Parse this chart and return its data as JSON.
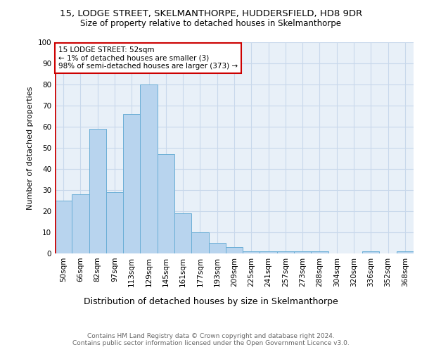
{
  "title_line1": "15, LODGE STREET, SKELMANTHORPE, HUDDERSFIELD, HD8 9DR",
  "title_line2": "Size of property relative to detached houses in Skelmanthorpe",
  "xlabel": "Distribution of detached houses by size in Skelmanthorpe",
  "ylabel": "Number of detached properties",
  "categories": [
    "50sqm",
    "66sqm",
    "82sqm",
    "97sqm",
    "113sqm",
    "129sqm",
    "145sqm",
    "161sqm",
    "177sqm",
    "193sqm",
    "209sqm",
    "225sqm",
    "241sqm",
    "257sqm",
    "273sqm",
    "288sqm",
    "304sqm",
    "320sqm",
    "336sqm",
    "352sqm",
    "368sqm"
  ],
  "values": [
    25,
    28,
    59,
    29,
    66,
    80,
    47,
    19,
    10,
    5,
    3,
    1,
    1,
    1,
    1,
    1,
    0,
    0,
    1,
    0,
    1
  ],
  "bar_color": "#b8d4ee",
  "bar_edge_color": "#6aaed6",
  "annotation_box_text": "15 LODGE STREET: 52sqm\n← 1% of detached houses are smaller (3)\n98% of semi-detached houses are larger (373) →",
  "annotation_box_color": "#ffffff",
  "annotation_box_edge_color": "#cc0000",
  "ylim": [
    0,
    100
  ],
  "yticks": [
    0,
    10,
    20,
    30,
    40,
    50,
    60,
    70,
    80,
    90,
    100
  ],
  "grid_color": "#c8d8eb",
  "bg_color": "#e8f0f8",
  "footer_line1": "Contains HM Land Registry data © Crown copyright and database right 2024.",
  "footer_line2": "Contains public sector information licensed under the Open Government Licence v3.0.",
  "title1_fontsize": 9.5,
  "title2_fontsize": 8.5,
  "ylabel_fontsize": 8.0,
  "xlabel_fontsize": 9.0,
  "tick_fontsize": 7.5,
  "annot_fontsize": 7.5,
  "footer_fontsize": 6.5
}
